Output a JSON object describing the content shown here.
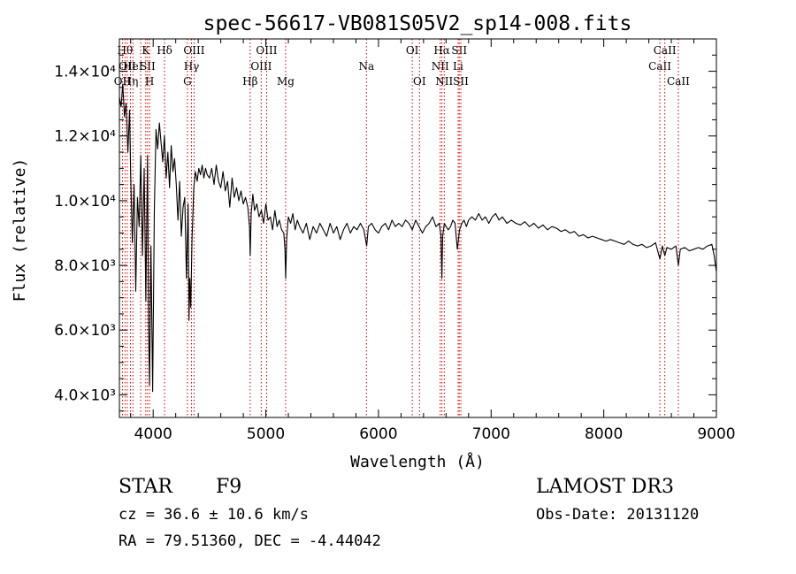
{
  "chart_data": {
    "type": "line",
    "title": "spec-56617-VB081S05V2_sp14-008.fits",
    "xlabel": "Wavelength (Å)",
    "ylabel": "Flux (relative)",
    "xlim": [
      3700,
      9000
    ],
    "ylim": [
      3300,
      15000
    ],
    "x_ticks": [
      {
        "value": 4000,
        "label": "4000"
      },
      {
        "value": 5000,
        "label": "5000"
      },
      {
        "value": 6000,
        "label": "6000"
      },
      {
        "value": 7000,
        "label": "7000"
      },
      {
        "value": 8000,
        "label": "8000"
      },
      {
        "value": 9000,
        "label": "9000"
      }
    ],
    "y_ticks": [
      {
        "value": 4000,
        "label": "4.0×10³"
      },
      {
        "value": 6000,
        "label": "6.0×10³"
      },
      {
        "value": 8000,
        "label": "8.0×10³"
      },
      {
        "value": 10000,
        "label": "1.0×10⁴"
      },
      {
        "value": 12000,
        "label": "1.2×10⁴"
      },
      {
        "value": 14000,
        "label": "1.4×10⁴"
      }
    ],
    "series": [
      {
        "name": "flux",
        "x": [
          3700,
          3715,
          3730,
          3745,
          3760,
          3775,
          3790,
          3800,
          3815,
          3830,
          3845,
          3860,
          3875,
          3890,
          3905,
          3920,
          3935,
          3950,
          3960,
          3968,
          3980,
          3995,
          4010,
          4025,
          4040,
          4055,
          4070,
          4085,
          4100,
          4115,
          4130,
          4145,
          4160,
          4175,
          4190,
          4205,
          4220,
          4235,
          4250,
          4265,
          4280,
          4295,
          4310,
          4318,
          4325,
          4334,
          4345,
          4360,
          4375,
          4390,
          4405,
          4420,
          4435,
          4450,
          4465,
          4480,
          4500,
          4520,
          4540,
          4560,
          4580,
          4600,
          4620,
          4640,
          4660,
          4680,
          4700,
          4720,
          4740,
          4760,
          4780,
          4800,
          4820,
          4840,
          4855,
          4861,
          4870,
          4885,
          4900,
          4920,
          4940,
          4960,
          4980,
          5000,
          5020,
          5040,
          5060,
          5080,
          5100,
          5120,
          5140,
          5160,
          5170,
          5176,
          5185,
          5200,
          5220,
          5240,
          5260,
          5280,
          5300,
          5330,
          5360,
          5390,
          5420,
          5450,
          5480,
          5510,
          5540,
          5570,
          5600,
          5630,
          5660,
          5690,
          5720,
          5750,
          5780,
          5810,
          5840,
          5870,
          5895,
          5910,
          5940,
          5970,
          6000,
          6030,
          6060,
          6090,
          6120,
          6150,
          6180,
          6210,
          6240,
          6270,
          6300,
          6330,
          6360,
          6390,
          6420,
          6450,
          6480,
          6510,
          6540,
          6555,
          6563,
          6570,
          6585,
          6600,
          6620,
          6640,
          6660,
          6680,
          6700,
          6720,
          6740,
          6760,
          6780,
          6800,
          6830,
          6860,
          6890,
          6920,
          6950,
          6980,
          7010,
          7040,
          7070,
          7100,
          7140,
          7180,
          7220,
          7260,
          7300,
          7340,
          7380,
          7420,
          7460,
          7500,
          7540,
          7580,
          7620,
          7660,
          7700,
          7740,
          7780,
          7820,
          7860,
          7900,
          7940,
          7980,
          8020,
          8060,
          8100,
          8140,
          8180,
          8220,
          8260,
          8300,
          8340,
          8380,
          8420,
          8460,
          8498,
          8520,
          8542,
          8560,
          8600,
          8640,
          8662,
          8680,
          8720,
          8760,
          8800,
          8840,
          8880,
          8920,
          8960,
          8980,
          9000
        ],
        "values": [
          13200,
          12900,
          13600,
          12600,
          13000,
          11500,
          12800,
          10900,
          8700,
          10500,
          7200,
          10100,
          9200,
          11400,
          8300,
          11000,
          6900,
          11400,
          6000,
          4300,
          8600,
          4100,
          9700,
          12200,
          11600,
          12400,
          11800,
          11200,
          12000,
          10700,
          11500,
          10400,
          11700,
          10900,
          11300,
          10500,
          9400,
          10600,
          8900,
          9800,
          10100,
          7600,
          9900,
          6300,
          7600,
          6700,
          8800,
          10400,
          10900,
          10600,
          11000,
          10800,
          11100,
          10700,
          11000,
          10800,
          10700,
          11000,
          10500,
          11100,
          10600,
          10400,
          10900,
          10300,
          10600,
          9800,
          10700,
          10100,
          10400,
          10000,
          10300,
          9900,
          10100,
          9800,
          9200,
          8300,
          9600,
          10200,
          9700,
          9900,
          9500,
          9700,
          9300,
          9900,
          9400,
          9500,
          9100,
          9700,
          9200,
          9400,
          9100,
          9000,
          8500,
          7600,
          8800,
          9500,
          9300,
          9600,
          9100,
          9400,
          9200,
          9000,
          9300,
          8800,
          9200,
          9000,
          9300,
          9100,
          8900,
          9300,
          9000,
          9200,
          8800,
          9100,
          9300,
          9000,
          9200,
          9100,
          9300,
          9100,
          8600,
          9200,
          9300,
          9100,
          9000,
          9200,
          9300,
          9100,
          9400,
          9200,
          9300,
          9200,
          9400,
          9300,
          9100,
          9400,
          9200,
          9000,
          9200,
          9300,
          9500,
          9200,
          9300,
          8900,
          7600,
          8900,
          9300,
          9200,
          9100,
          9200,
          9400,
          9300,
          8500,
          9100,
          9300,
          9400,
          9200,
          9400,
          9500,
          9400,
          9600,
          9400,
          9500,
          9300,
          9500,
          9600,
          9400,
          9500,
          9300,
          9400,
          9300,
          9250,
          9350,
          9200,
          9300,
          9150,
          9250,
          9100,
          9200,
          9150,
          9050,
          9100,
          9000,
          9050,
          8900,
          8950,
          8850,
          8900,
          8850,
          8800,
          8750,
          8800,
          8750,
          8700,
          8650,
          8750,
          8650,
          8600,
          8650,
          8550,
          8600,
          8700,
          8200,
          8600,
          8300,
          8550,
          8500,
          8600,
          8000,
          8500,
          8550,
          8450,
          8500,
          8550,
          8500,
          8600,
          8650,
          8300,
          7800
        ]
      }
    ],
    "line_markers": [
      {
        "x": 3727,
        "label": "OII",
        "row": 2
      },
      {
        "x": 3750,
        "label": "Hθ",
        "row": 0
      },
      {
        "x": 3770,
        "label": "OII",
        "row": 1
      },
      {
        "x": 3798,
        "label": "Hη",
        "row": 2
      },
      {
        "x": 3820,
        "label": "HeI",
        "row": 1
      },
      {
        "x": 3889,
        "label": "",
        "row": 0
      },
      {
        "x": 3934,
        "label": "K",
        "row": 0
      },
      {
        "x": 3950,
        "label": "SII",
        "row": 1
      },
      {
        "x": 3968,
        "label": "H",
        "row": 2
      },
      {
        "x": 4101,
        "label": "Hδ",
        "row": 0
      },
      {
        "x": 4304,
        "label": "G",
        "row": 2
      },
      {
        "x": 4340,
        "label": "Hγ",
        "row": 1
      },
      {
        "x": 4363,
        "label": "OIII",
        "row": 0
      },
      {
        "x": 4861,
        "label": "Hβ",
        "row": 2
      },
      {
        "x": 4959,
        "label": "OIII",
        "row": 1
      },
      {
        "x": 5007,
        "label": "OIII",
        "row": 0
      },
      {
        "x": 5176,
        "label": "Mg",
        "row": 2
      },
      {
        "x": 5893,
        "label": "Na",
        "row": 1
      },
      {
        "x": 6300,
        "label": "OI",
        "row": 0
      },
      {
        "x": 6364,
        "label": "OI",
        "row": 2
      },
      {
        "x": 6548,
        "label": "NII",
        "row": 1
      },
      {
        "x": 6563,
        "label": "Hα",
        "row": 0
      },
      {
        "x": 6584,
        "label": "NII",
        "row": 2
      },
      {
        "x": 6707,
        "label": "Li",
        "row": 1
      },
      {
        "x": 6717,
        "label": "SII",
        "row": 0
      },
      {
        "x": 6731,
        "label": "SII",
        "row": 2
      },
      {
        "x": 8498,
        "label": "CaII",
        "row": 1
      },
      {
        "x": 8542,
        "label": "CaII",
        "row": 0
      },
      {
        "x": 8662,
        "label": "CaII",
        "row": 2
      }
    ]
  },
  "info": {
    "object_type": "STAR",
    "spectral_class": "F9",
    "survey": "LAMOST DR3",
    "cz": "cz = 36.6 ± 10.6 km/s",
    "obs_date": "Obs-Date: 20131120",
    "ra_dec": "RA =  79.51360, DEC =  -4.44042"
  },
  "colors": {
    "axis": "#000000",
    "line": "#000000",
    "marker": "#cc0000"
  }
}
